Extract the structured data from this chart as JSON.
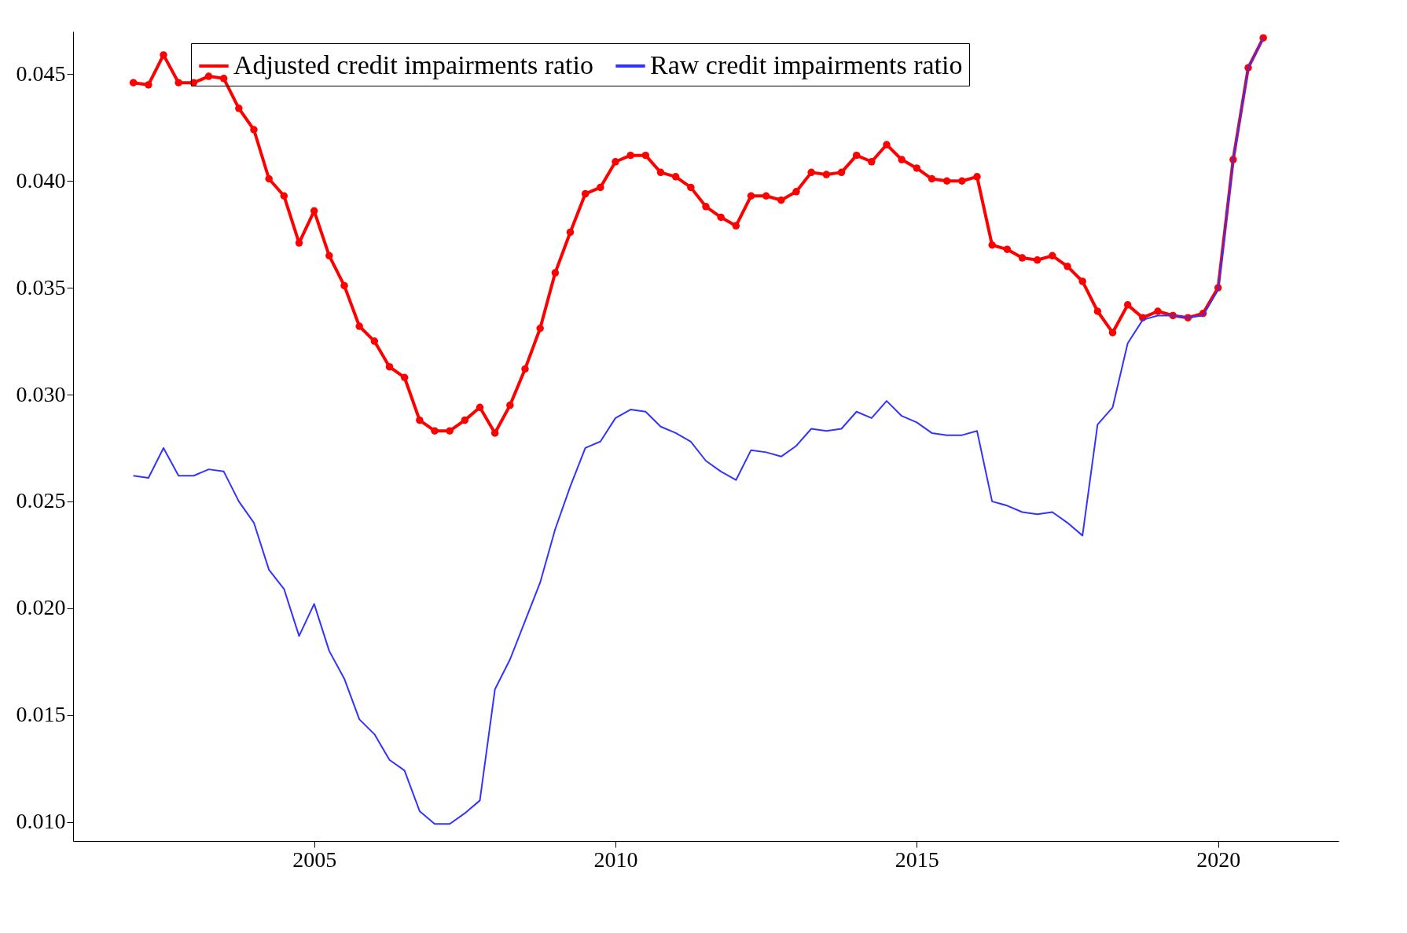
{
  "chart_data": {
    "type": "line",
    "x": [
      2002,
      2002.25,
      2002.5,
      2002.75,
      2003,
      2003.25,
      2003.5,
      2003.75,
      2004,
      2004.25,
      2004.5,
      2004.75,
      2005,
      2005.25,
      2005.5,
      2005.75,
      2006,
      2006.25,
      2006.5,
      2006.75,
      2007,
      2007.25,
      2007.5,
      2007.75,
      2008,
      2008.25,
      2008.5,
      2008.75,
      2009,
      2009.25,
      2009.5,
      2009.75,
      2010,
      2010.25,
      2010.5,
      2010.75,
      2011,
      2011.25,
      2011.5,
      2011.75,
      2012,
      2012.25,
      2012.5,
      2012.75,
      2013,
      2013.25,
      2013.5,
      2013.75,
      2014,
      2014.25,
      2014.5,
      2014.75,
      2015,
      2015.25,
      2015.5,
      2015.75,
      2016,
      2016.25,
      2016.5,
      2016.75,
      2017,
      2017.25,
      2017.5,
      2017.75,
      2018,
      2018.25,
      2018.5,
      2018.75,
      2019,
      2019.25,
      2019.5,
      2019.75,
      2020,
      2020.25,
      2020.5,
      2020.75
    ],
    "series": [
      {
        "name": "Adjusted credit impairments ratio",
        "color": "#ff0000",
        "marker": "circle",
        "values": [
          0.0446,
          0.0445,
          0.0459,
          0.0446,
          0.0446,
          0.0449,
          0.0448,
          0.0434,
          0.0424,
          0.0401,
          0.0393,
          0.0371,
          0.0386,
          0.0365,
          0.0351,
          0.0332,
          0.0325,
          0.0313,
          0.0308,
          0.0288,
          0.0283,
          0.0283,
          0.0288,
          0.0294,
          0.0282,
          0.0295,
          0.0312,
          0.0331,
          0.0357,
          0.0376,
          0.0394,
          0.0397,
          0.0409,
          0.0412,
          0.0412,
          0.0404,
          0.0402,
          0.0397,
          0.0388,
          0.0383,
          0.0379,
          0.0393,
          0.0393,
          0.0391,
          0.0395,
          0.0404,
          0.0403,
          0.0404,
          0.0412,
          0.0409,
          0.0417,
          0.041,
          0.0406,
          0.0401,
          0.04,
          0.04,
          0.0402,
          0.037,
          0.0368,
          0.0364,
          0.0363,
          0.0365,
          0.036,
          0.0353,
          0.0339,
          0.0329,
          0.0342,
          0.0336,
          0.0339,
          0.0337,
          0.0336,
          0.0338,
          0.035,
          0.041,
          0.0453,
          0.0467
        ]
      },
      {
        "name": "Raw credit impairments ratio",
        "color": "#3333ff",
        "marker": "none",
        "values": [
          0.0262,
          0.0261,
          0.0275,
          0.0262,
          0.0262,
          0.0265,
          0.0264,
          0.025,
          0.024,
          0.0218,
          0.0209,
          0.0187,
          0.0202,
          0.018,
          0.0167,
          0.0148,
          0.0141,
          0.0129,
          0.0124,
          0.0105,
          0.0099,
          0.0099,
          0.0104,
          0.011,
          0.0162,
          0.0176,
          0.0194,
          0.0212,
          0.0237,
          0.0257,
          0.0275,
          0.0278,
          0.0289,
          0.0293,
          0.0292,
          0.0285,
          0.0282,
          0.0278,
          0.0269,
          0.0264,
          0.026,
          0.0274,
          0.0273,
          0.0271,
          0.0276,
          0.0284,
          0.0283,
          0.0284,
          0.0292,
          0.0289,
          0.0297,
          0.029,
          0.0287,
          0.0282,
          0.0281,
          0.0281,
          0.0283,
          0.025,
          0.0248,
          0.0245,
          0.0244,
          0.0245,
          0.024,
          0.0234,
          0.0286,
          0.0294,
          0.0324,
          0.0335,
          0.0337,
          0.0337,
          0.0336,
          0.0337,
          0.0349,
          0.041,
          0.0453,
          0.0467
        ]
      }
    ],
    "xlim": [
      2001,
      2022
    ],
    "xticks": [
      2005,
      2010,
      2015,
      2020
    ],
    "ylim": [
      0.0091,
      0.047
    ],
    "yticks": [
      {
        "value": 0.01,
        "label": "0.010"
      },
      {
        "value": 0.015,
        "label": "0.015"
      },
      {
        "value": 0.02,
        "label": "0.020"
      },
      {
        "value": 0.025,
        "label": "0.025"
      },
      {
        "value": 0.03,
        "label": "0.030"
      },
      {
        "value": 0.035,
        "label": "0.035"
      },
      {
        "value": 0.04,
        "label": "0.040"
      },
      {
        "value": 0.045,
        "label": "0.045"
      }
    ],
    "grid": false,
    "legend": "top",
    "line_style": "solid"
  }
}
